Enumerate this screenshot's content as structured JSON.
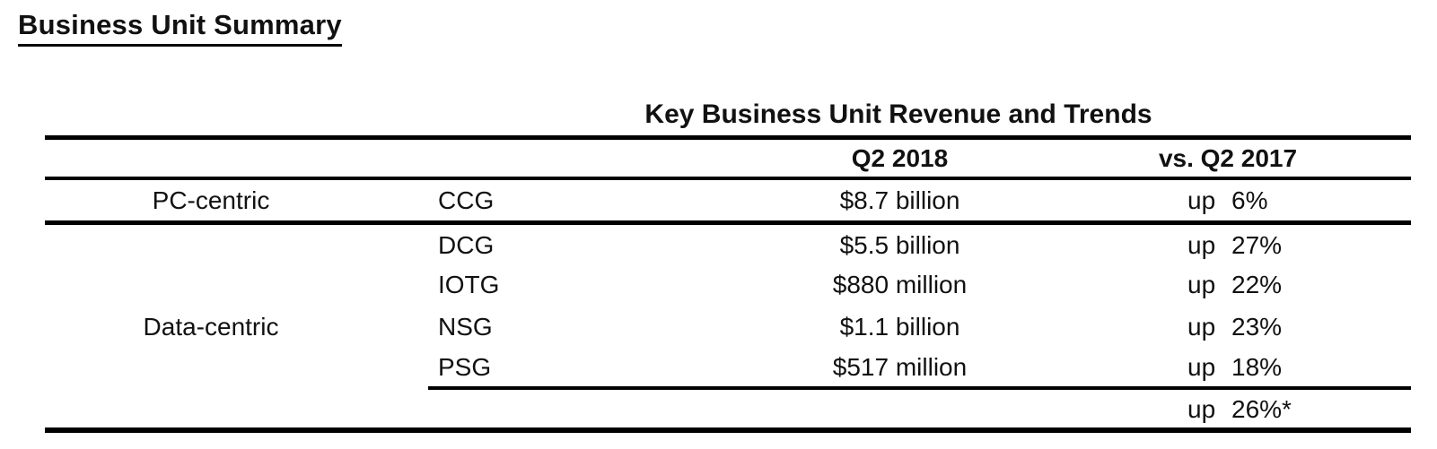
{
  "page_title": "Business Unit Summary",
  "table": {
    "title": "Key Business Unit Revenue and Trends",
    "columns": {
      "revenue": "Q2 2018",
      "trend": "vs. Q2 2017"
    },
    "groups": [
      {
        "name": "PC-centric",
        "rows": [
          {
            "unit": "CCG",
            "revenue": "$8.7 billion",
            "trend_word": "up",
            "trend_value": "6%"
          }
        ]
      },
      {
        "name": "Data-centric",
        "rows": [
          {
            "unit": "DCG",
            "revenue": "$5.5 billion",
            "trend_word": "up",
            "trend_value": "27%"
          },
          {
            "unit": "IOTG",
            "revenue": "$880 million",
            "trend_word": "up",
            "trend_value": "22%"
          },
          {
            "unit": "NSG",
            "revenue": "$1.1 billion",
            "trend_word": "up",
            "trend_value": "23%"
          },
          {
            "unit": "PSG",
            "revenue": "$517 million",
            "trend_word": "up",
            "trend_value": "18%"
          }
        ]
      }
    ],
    "total": {
      "trend_word": "up",
      "trend_value": "26%*"
    }
  },
  "colors": {
    "background": "#ffffff",
    "text": "#111111",
    "rule": "#000000"
  }
}
